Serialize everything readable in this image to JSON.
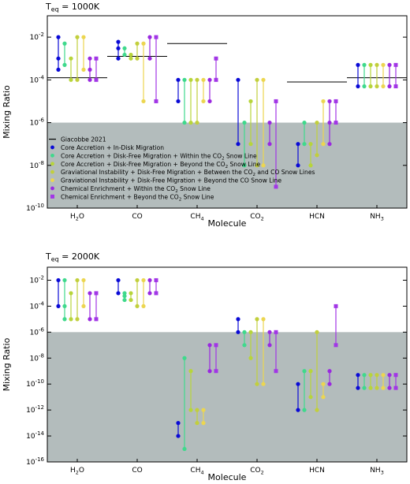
{
  "colors": {
    "core_accretion_in_disk": "#0a0ad6",
    "core_accretion_within_co2": "#3fd98c",
    "core_accretion_beyond_co2": "#b7d53a",
    "grav_between": "#c2cf3c",
    "grav_beyond_co": "#ecd650",
    "chem_within_co2": "#9a28e0",
    "chem_beyond_co2": "#a236e6",
    "shade": "#b3bcbc"
  },
  "chart_data": [
    {
      "type": "scatter",
      "title": "T_eq = 1000K",
      "title_parts": {
        "base": "T",
        "sub": "eq",
        "rest": " = 1000K"
      },
      "xlabel": "Molecule",
      "ylabel": "Mixing Ratio",
      "yscale": "log",
      "ylim": [
        1e-10,
        0.1
      ],
      "categories": [
        "H2O",
        "CO",
        "CH4",
        "CO2",
        "HCN",
        "NH3"
      ],
      "category_labels": [
        {
          "base": "H",
          "sub": "2",
          "rest": "O"
        },
        {
          "base": "CO",
          "sub": "",
          "rest": ""
        },
        {
          "base": "CH",
          "sub": "4",
          "rest": ""
        },
        {
          "base": "CO",
          "sub": "2",
          "rest": ""
        },
        {
          "base": "HCN",
          "sub": "",
          "rest": ""
        },
        {
          "base": "NH",
          "sub": "3",
          "rest": ""
        }
      ],
      "ytick_exponents": [
        -10,
        -8,
        -6,
        -4,
        -2
      ],
      "shaded_below": 1e-06,
      "reference": {
        "name": "Giacobbe 2021",
        "values": [
          0.0001259,
          0.001259,
          0.005012,
          null,
          7.94e-05,
          0.0001259
        ]
      },
      "legend_placement": "lower-left",
      "legend": [
        {
          "name": "Giacobbe 2021",
          "marker": "line"
        },
        {
          "name": "Core Accretion + In-Disk Migration",
          "marker": "circle",
          "color_key": "core_accretion_in_disk"
        },
        {
          "name": "Core Accretion + Disk-Free Migration + Within the CO2 Snow Line",
          "parts": [
            "Core Accretion + Disk-Free Migration + Within the CO",
            "2",
            " Snow Line"
          ],
          "marker": "circle",
          "color_key": "core_accretion_within_co2"
        },
        {
          "name": "Core Accretion + Disk-Free Migration + Beyond the CO2 Snow Line",
          "parts": [
            "Core Accretion + Disk-Free Migration + Beyond the CO",
            "2",
            " Snow Line"
          ],
          "marker": "circle",
          "color_key": "core_accretion_beyond_co2"
        },
        {
          "name": "Graviational Instability + Disk-Free Migration + Between the CO2 and CO Snow Lines",
          "parts": [
            "Graviational Instability + Disk-Free Migration + Between the CO",
            "2",
            " and CO Snow Lines"
          ],
          "marker": "circle",
          "color_key": "grav_between"
        },
        {
          "name": "Graviational Instability + Disk-Free Migration + Beyond the CO Snow Line",
          "marker": "circle",
          "color_key": "grav_beyond_co"
        },
        {
          "name": "Chemical Enrichment + Within the CO2 Snow Line",
          "parts": [
            "Chemical Enrichment + Within the CO",
            "2",
            " Snow Line"
          ],
          "marker": "circle",
          "color_key": "chem_within_co2"
        },
        {
          "name": "Chemical Enrichment + Beyond the CO2 Snow Line",
          "parts": [
            "Chemical Enrichment + Beyond the CO",
            "2",
            " Snow Line"
          ],
          "marker": "square",
          "color_key": "chem_beyond_co2"
        }
      ],
      "series": [
        {
          "color_key": "core_accretion_in_disk",
          "low": [
            0.0003,
            0.001,
            1e-05,
            1e-07,
            1e-08,
            5e-05
          ],
          "high": [
            0.01,
            0.006,
            0.0001,
            0.0001,
            1e-07,
            0.0005
          ],
          "mid": [
            0.001,
            0.003,
            null,
            null,
            null,
            null
          ]
        },
        {
          "color_key": "core_accretion_within_co2",
          "low": [
            0.0005,
            0.0015,
            1e-06,
            1e-08,
            1e-07,
            5e-05
          ],
          "high": [
            0.005,
            0.003,
            0.0001,
            1e-06,
            1e-06,
            0.0005
          ],
          "mid": [
            null,
            null,
            null,
            null,
            null,
            null
          ]
        },
        {
          "color_key": "core_accretion_beyond_co2",
          "low": [
            0.0001,
            0.001,
            1e-06,
            1e-07,
            1e-08,
            5e-05
          ],
          "high": [
            0.001,
            0.0015,
            0.0001,
            1e-05,
            1e-07,
            0.0005
          ],
          "mid": [
            null,
            null,
            null,
            null,
            null,
            null
          ]
        },
        {
          "color_key": "grav_between",
          "low": [
            0.0001,
            0.001,
            1e-06,
            1e-08,
            3e-08,
            5e-05
          ],
          "high": [
            0.01,
            0.005,
            0.0001,
            0.0001,
            1e-06,
            0.0005
          ],
          "mid": [
            null,
            null,
            null,
            null,
            null,
            null
          ]
        },
        {
          "color_key": "grav_beyond_co",
          "low": [
            0.0003,
            1e-05,
            1e-05,
            1e-08,
            1e-07,
            5e-05
          ],
          "high": [
            0.01,
            0.005,
            0.0001,
            0.0001,
            1e-05,
            0.0005
          ],
          "mid": [
            null,
            null,
            null,
            null,
            null,
            null
          ]
        },
        {
          "color_key": "chem_within_co2",
          "low": [
            0.0001,
            0.001,
            1e-05,
            1e-07,
            1e-07,
            5e-05
          ],
          "high": [
            0.001,
            0.01,
            0.0001,
            1e-06,
            1e-05,
            0.0005
          ],
          "mid": [
            0.0003,
            null,
            null,
            null,
            1e-06,
            null
          ]
        },
        {
          "color_key": "chem_beyond_co2",
          "low": [
            0.0001,
            1e-05,
            0.0001,
            1e-09,
            1e-06,
            5e-05
          ],
          "high": [
            0.001,
            0.01,
            0.001,
            1e-05,
            1e-05,
            0.0005
          ],
          "mid": [
            null,
            null,
            null,
            null,
            null,
            null
          ]
        }
      ]
    },
    {
      "type": "scatter",
      "title": "T_eq = 2000K",
      "title_parts": {
        "base": "T",
        "sub": "eq",
        "rest": " = 2000K"
      },
      "xlabel": "Molecule",
      "ylabel": "Mixing Ratio",
      "yscale": "log",
      "ylim": [
        1e-16,
        0.1
      ],
      "categories": [
        "H2O",
        "CO",
        "CH4",
        "CO2",
        "HCN",
        "NH3"
      ],
      "category_labels": [
        {
          "base": "H",
          "sub": "2",
          "rest": "O"
        },
        {
          "base": "CO",
          "sub": "",
          "rest": ""
        },
        {
          "base": "CH",
          "sub": "4",
          "rest": ""
        },
        {
          "base": "CO",
          "sub": "2",
          "rest": ""
        },
        {
          "base": "HCN",
          "sub": "",
          "rest": ""
        },
        {
          "base": "NH",
          "sub": "3",
          "rest": ""
        }
      ],
      "ytick_exponents": [
        -16,
        -14,
        -12,
        -10,
        -8,
        -6,
        -4,
        -2
      ],
      "shaded_below": 1e-06,
      "series": [
        {
          "color_key": "core_accretion_in_disk",
          "low": [
            0.0001,
            0.001,
            1e-14,
            1e-06,
            1e-12,
            5e-11
          ],
          "high": [
            0.01,
            0.01,
            1e-13,
            1e-05,
            1e-10,
            5e-10
          ],
          "mid": [
            null,
            null,
            null,
            null,
            null,
            null
          ]
        },
        {
          "color_key": "core_accretion_within_co2",
          "low": [
            1e-05,
            0.0003,
            1e-15,
            1e-07,
            1e-12,
            5e-11
          ],
          "high": [
            0.01,
            0.001,
            1e-08,
            1e-06,
            1e-09,
            5e-10
          ],
          "mid": [
            0.0001,
            0.0006,
            null,
            null,
            null,
            null
          ]
        },
        {
          "color_key": "core_accretion_beyond_co2",
          "low": [
            1e-05,
            0.0003,
            1e-12,
            1e-08,
            1e-11,
            5e-11
          ],
          "high": [
            0.001,
            0.001,
            1e-09,
            1e-06,
            1e-09,
            5e-10
          ],
          "mid": [
            null,
            null,
            null,
            null,
            null,
            null
          ]
        },
        {
          "color_key": "grav_between",
          "low": [
            1e-05,
            0.0001,
            1e-13,
            1e-10,
            1e-12,
            5e-11
          ],
          "high": [
            0.01,
            0.01,
            1e-12,
            1e-05,
            1e-06,
            5e-10
          ],
          "mid": [
            null,
            null,
            null,
            null,
            null,
            null
          ]
        },
        {
          "color_key": "grav_beyond_co",
          "low": [
            0.0001,
            0.0001,
            1e-13,
            1e-10,
            1e-11,
            5e-11
          ],
          "high": [
            0.01,
            0.01,
            1e-12,
            1e-05,
            1e-10,
            5e-10
          ],
          "mid": [
            null,
            null,
            null,
            null,
            null,
            null
          ]
        },
        {
          "color_key": "chem_within_co2",
          "low": [
            1e-05,
            0.001,
            1e-09,
            1e-07,
            1e-10,
            5e-11
          ],
          "high": [
            0.001,
            0.01,
            1e-07,
            1e-06,
            1e-09,
            5e-10
          ],
          "mid": [
            null,
            null,
            null,
            null,
            null,
            null
          ]
        },
        {
          "color_key": "chem_beyond_co2",
          "low": [
            1e-05,
            0.001,
            1e-09,
            1e-09,
            1e-07,
            5e-11
          ],
          "high": [
            0.001,
            0.01,
            1e-07,
            1e-06,
            0.0001,
            5e-10
          ],
          "mid": [
            null,
            null,
            null,
            null,
            null,
            null
          ]
        }
      ]
    }
  ]
}
